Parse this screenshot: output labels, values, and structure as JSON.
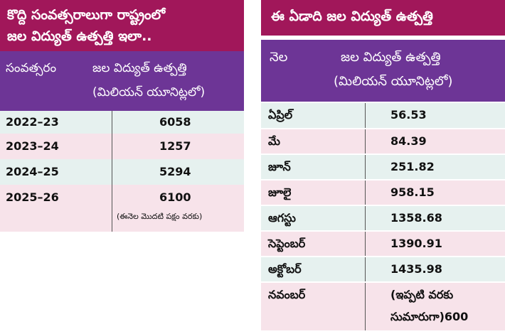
{
  "left_table": {
    "title_line1": "కొద్ది సంవత్సరాలుగా రాష్ట్రంలో",
    "title_line2": "జల విద్యుత్ ఉత్పత్తి ఇలా..",
    "col_year": "సంవత్సరం",
    "col_output_line1": "జల విద్యుత్ ఉత్పత్తి",
    "col_output_line2": "(మిలియన్ యూనిట్లలో)",
    "rows": [
      {
        "year": "2022–23",
        "value": "6058"
      },
      {
        "year": "2023–24",
        "value": "1257"
      },
      {
        "year": "2024–25",
        "value": "5294"
      },
      {
        "year": "2025–26",
        "value": "6100",
        "note": "(ఈనెల మొదటి పక్షం వరకు)"
      }
    ],
    "colors": {
      "title_bg": "#a1175a",
      "header_bg": "#6d3596",
      "row_teal": "#e6f1ef",
      "row_pink": "#f7e3ea"
    }
  },
  "right_table": {
    "title": "ఈ ఏడాది జల విద్యుత్ ఉత్పత్తి",
    "col_month": "నెల",
    "col_output_line1": "జల విద్యుత్ ఉత్పత్తి",
    "col_output_line2": "(మిలియన్ యూనిట్లలో)",
    "rows": [
      {
        "month": "ఏప్రిల్",
        "value": "56.53"
      },
      {
        "month": "మే",
        "value": "84.39"
      },
      {
        "month": "జూన్",
        "value": "251.82"
      },
      {
        "month": "జూలై",
        "value": "958.15"
      },
      {
        "month": "ఆగస్టు",
        "value": "1358.68"
      },
      {
        "month": "సెప్టెంబర్",
        "value": "1390.91"
      },
      {
        "month": "అక్టోబర్",
        "value": "1435.98"
      },
      {
        "month": "నవంబర్",
        "value_line1": "(ఇప్పటి వరకు",
        "value_line2": "సుమారుగా)600"
      }
    ]
  }
}
